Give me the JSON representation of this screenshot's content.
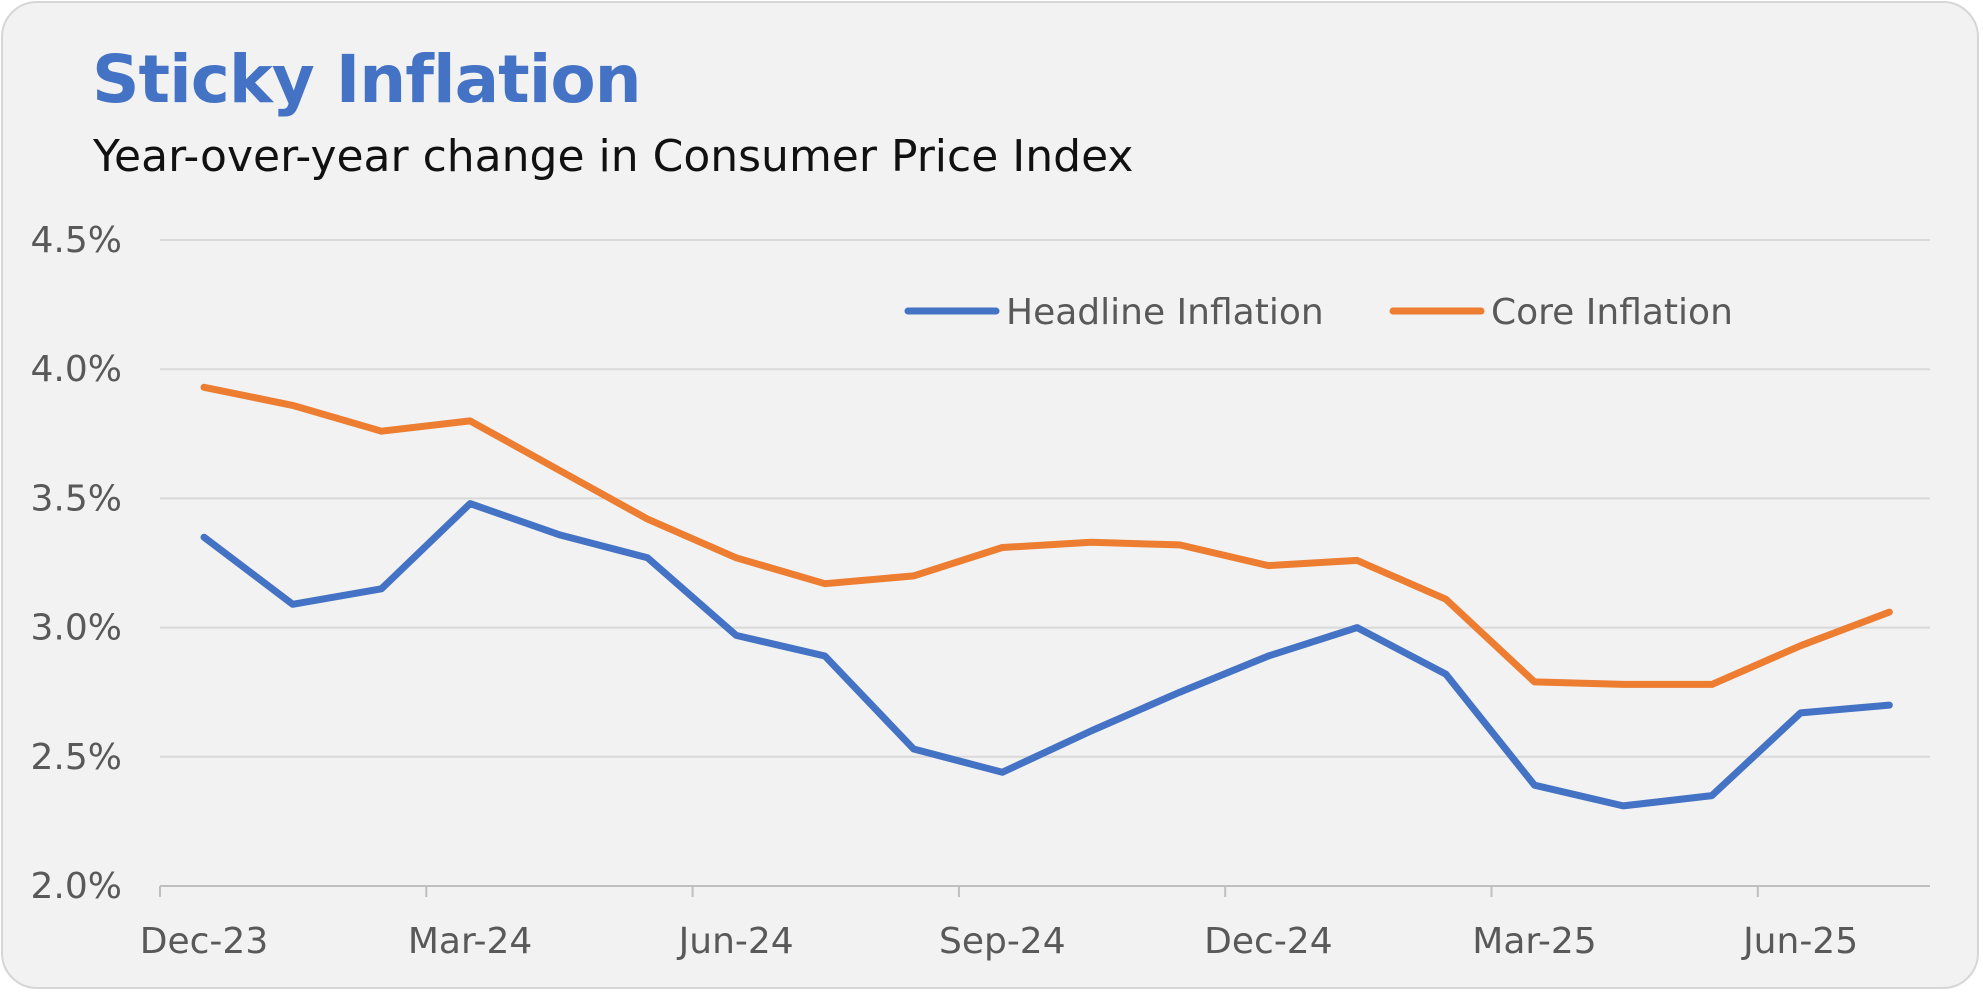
{
  "chart_data": {
    "type": "line",
    "title": "Sticky Inflation",
    "subtitle": "Year-over-year change in Consumer Price Index",
    "xlabel": "",
    "ylabel": "",
    "ylim": [
      2.0,
      4.5
    ],
    "yticks": [
      "2.0%",
      "2.5%",
      "3.0%",
      "3.5%",
      "4.0%",
      "4.5%"
    ],
    "ytick_values": [
      2.0,
      2.5,
      3.0,
      3.5,
      4.0,
      4.5
    ],
    "x": [
      "Dec-23",
      "Jan-24",
      "Feb-24",
      "Mar-24",
      "Apr-24",
      "May-24",
      "Jun-24",
      "Jul-24",
      "Aug-24",
      "Sep-24",
      "Oct-24",
      "Nov-24",
      "Dec-24",
      "Jan-25",
      "Feb-25",
      "Mar-25",
      "Apr-25",
      "May-25",
      "Jun-25",
      "Jul-25"
    ],
    "xtick_labels": [
      "Dec-23",
      "Mar-24",
      "Jun-24",
      "Sep-24",
      "Dec-24",
      "Mar-25",
      "Jun-25"
    ],
    "xtick_label_indices": [
      0,
      3,
      6,
      9,
      12,
      15,
      18
    ],
    "grid": "horizontal",
    "legend_position": "top-right",
    "series": [
      {
        "name": "Headline Inflation",
        "color": "#4472c4",
        "values": [
          3.35,
          3.09,
          3.15,
          3.48,
          3.36,
          3.27,
          2.97,
          2.89,
          2.53,
          2.44,
          2.6,
          2.75,
          2.89,
          3.0,
          2.82,
          2.39,
          2.31,
          2.35,
          2.67,
          2.7
        ]
      },
      {
        "name": "Core Inflation",
        "color": "#ed7d31",
        "values": [
          3.93,
          3.86,
          3.76,
          3.8,
          3.61,
          3.42,
          3.27,
          3.17,
          3.2,
          3.31,
          3.33,
          3.32,
          3.24,
          3.26,
          3.11,
          2.79,
          2.78,
          2.78,
          2.93,
          3.06
        ]
      }
    ]
  }
}
